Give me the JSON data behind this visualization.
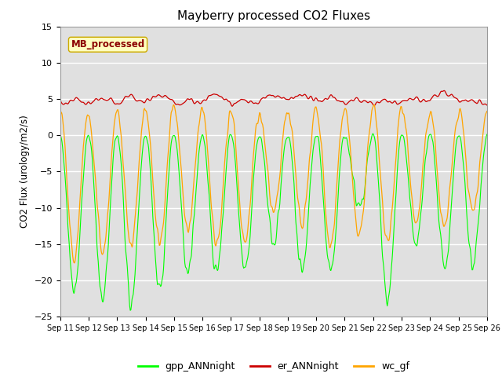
{
  "title": "Mayberry processed CO2 Fluxes",
  "ylabel": "CO2 Flux (urology/m2/s)",
  "ylim": [
    -25,
    15
  ],
  "yticks": [
    -25,
    -20,
    -15,
    -10,
    -5,
    0,
    5,
    10,
    15
  ],
  "n_days": 15,
  "start_day": 11,
  "points_per_day": 48,
  "colors": {
    "gpp": "#00ff00",
    "er": "#cc0000",
    "wc": "#ffa500"
  },
  "legend_labels": [
    "gpp_ANNnight",
    "er_ANNnight",
    "wc_gf"
  ],
  "legend_box_text": "MB_processed",
  "legend_box_color": "#ffffc0",
  "legend_box_text_color": "#8b0000",
  "plot_bg_color": "#e0e0e0",
  "fig_bg_color": "#ffffff",
  "grid_color": "#ffffff"
}
